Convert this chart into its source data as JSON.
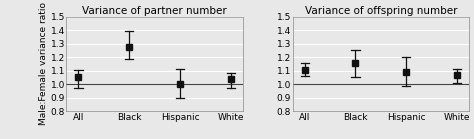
{
  "panel1_title": "Variance of partner number",
  "panel2_title": "Variance of offspring number",
  "categories": [
    "All",
    "Black",
    "Hispanic",
    "White"
  ],
  "ylabel": "Male:Female variance ratio",
  "ylim": [
    0.8,
    1.5
  ],
  "yticks": [
    0.8,
    0.9,
    1.0,
    1.1,
    1.2,
    1.3,
    1.4,
    1.5
  ],
  "panel1_centers": [
    1.055,
    1.275,
    1.005,
    1.035
  ],
  "panel1_lower": [
    0.975,
    1.185,
    0.895,
    0.975
  ],
  "panel1_upper": [
    1.105,
    1.395,
    1.115,
    1.085
  ],
  "panel2_centers": [
    1.105,
    1.155,
    1.09,
    1.07
  ],
  "panel2_lower": [
    1.06,
    1.055,
    0.99,
    1.01
  ],
  "panel2_upper": [
    1.155,
    1.255,
    1.205,
    1.115
  ],
  "marker_color": "#111111",
  "line_color": "#111111",
  "ref_line_color": "#444444",
  "bg_color": "#e8e8e8",
  "plot_bg_color": "#e8e8e8",
  "grid_color": "#ffffff",
  "title_fontsize": 7.5,
  "tick_fontsize": 6.5,
  "ylabel_fontsize": 6.5,
  "marker_size": 5
}
